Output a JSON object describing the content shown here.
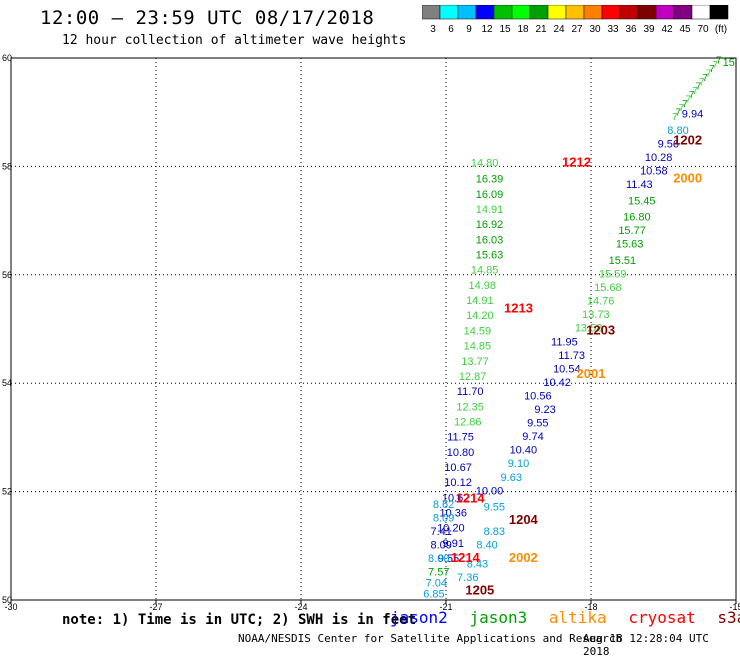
{
  "title": "12:00 — 23:59 UTC 08/17/2018",
  "subtitle": "12 hour collection of altimeter wave heights",
  "colorbar": {
    "colors": [
      "#808080",
      "#00ffff",
      "#00c0ff",
      "#0000ff",
      "#00c000",
      "#00ff00",
      "#00a000",
      "#ffff00",
      "#ffc000",
      "#ff8000",
      "#ff0000",
      "#c00000",
      "#800000",
      "#c000c0",
      "#800080",
      "#ffffff",
      "#000000"
    ],
    "labels": [
      "3",
      "6",
      "9",
      "12",
      "15",
      "18",
      "21",
      "24",
      "27",
      "30",
      "33",
      "36",
      "39",
      "42",
      "45",
      "70",
      "(ft)"
    ]
  },
  "note": "note: 1) Time is in UTC; 2) SWH is in feet",
  "legend": [
    {
      "name": "jason2",
      "color": "#0000ff"
    },
    {
      "name": "jason3",
      "color": "#00a000"
    },
    {
      "name": "altika",
      "color": "#ff8c00"
    },
    {
      "name": "cryosat",
      "color": "#ff0000"
    },
    {
      "name": "s3a",
      "color": "#800000"
    }
  ],
  "footer": {
    "center": "NOAA/NESDIS Center for Satellite Applications and Research",
    "stamp": "Aug 18 12:28:04 UTC 2018"
  },
  "chart_data": {
    "type": "scatter",
    "xlim": [
      -30,
      -15
    ],
    "ylim": [
      50,
      60
    ],
    "xticks": [
      -30,
      -27,
      -24,
      -21,
      -18,
      -15
    ],
    "yticks": [
      50,
      52,
      54,
      56,
      58,
      60
    ],
    "grid": true,
    "sat_colors": {
      "jason2": "#0000c0",
      "jason3_light": "#40d040",
      "jason3": "#00a000",
      "altika": "#ff8c00",
      "cryosat": "#ff0000",
      "s3a": "#800000",
      "cyan": "#00a0e0"
    },
    "time_labels": [
      {
        "text": "1212",
        "x": -18.3,
        "y": 58.0,
        "sat": "cryosat"
      },
      {
        "text": "1213",
        "x": -19.5,
        "y": 55.3,
        "sat": "cryosat"
      },
      {
        "text": "1214",
        "x": -20.5,
        "y": 51.8,
        "sat": "cryosat"
      },
      {
        "text": "1214",
        "x": -20.6,
        "y": 50.7,
        "sat": "cryosat"
      },
      {
        "text": "1205",
        "x": -20.3,
        "y": 50.1,
        "sat": "s3a"
      },
      {
        "text": "1204",
        "x": -19.4,
        "y": 51.4,
        "sat": "s3a"
      },
      {
        "text": "1203",
        "x": -17.8,
        "y": 54.9,
        "sat": "s3a"
      },
      {
        "text": "1202",
        "x": -16.0,
        "y": 58.4,
        "sat": "s3a"
      },
      {
        "text": "2000",
        "x": -16.0,
        "y": 57.7,
        "sat": "altika"
      },
      {
        "text": "2001",
        "x": -18.0,
        "y": 54.1,
        "sat": "altika"
      },
      {
        "text": "2002",
        "x": -19.4,
        "y": 50.7,
        "sat": "altika"
      }
    ],
    "points": [
      {
        "v": "14.80",
        "x": -20.2,
        "y": 58.0,
        "sat": "jason3_light"
      },
      {
        "v": "16.39",
        "x": -20.1,
        "y": 57.7,
        "sat": "jason3"
      },
      {
        "v": "16.09",
        "x": -20.1,
        "y": 57.42,
        "sat": "jason3"
      },
      {
        "v": "14.91",
        "x": -20.1,
        "y": 57.14,
        "sat": "jason3_light"
      },
      {
        "v": "16.92",
        "x": -20.1,
        "y": 56.86,
        "sat": "jason3"
      },
      {
        "v": "16.03",
        "x": -20.1,
        "y": 56.58,
        "sat": "jason3"
      },
      {
        "v": "15.63",
        "x": -20.1,
        "y": 56.3,
        "sat": "jason3"
      },
      {
        "v": "14.85",
        "x": -20.2,
        "y": 56.02,
        "sat": "jason3_light"
      },
      {
        "v": "14.98",
        "x": -20.25,
        "y": 55.74,
        "sat": "jason3_light"
      },
      {
        "v": "14.91",
        "x": -20.3,
        "y": 55.46,
        "sat": "jason3_light"
      },
      {
        "v": "14.20",
        "x": -20.3,
        "y": 55.18,
        "sat": "jason3_light"
      },
      {
        "v": "14.59",
        "x": -20.35,
        "y": 54.9,
        "sat": "jason3_light"
      },
      {
        "v": "14.85",
        "x": -20.35,
        "y": 54.62,
        "sat": "jason3_light"
      },
      {
        "v": "13.77",
        "x": -20.4,
        "y": 54.34,
        "sat": "jason3_light"
      },
      {
        "v": "12.87",
        "x": -20.45,
        "y": 54.06,
        "sat": "jason3_light"
      },
      {
        "v": "11.70",
        "x": -20.5,
        "y": 53.78,
        "sat": "jason2"
      },
      {
        "v": "12.35",
        "x": -20.5,
        "y": 53.5,
        "sat": "jason3_light"
      },
      {
        "v": "12.86",
        "x": -20.55,
        "y": 53.22,
        "sat": "jason3_light"
      },
      {
        "v": "11.75",
        "x": -20.7,
        "y": 52.94,
        "sat": "jason2"
      },
      {
        "v": "10.80",
        "x": -20.7,
        "y": 52.66,
        "sat": "jason2"
      },
      {
        "v": "10.67",
        "x": -20.75,
        "y": 52.38,
        "sat": "jason2"
      },
      {
        "v": "10.12",
        "x": -20.75,
        "y": 52.1,
        "sat": "jason2"
      },
      {
        "v": "10.62",
        "x": -20.8,
        "y": 51.82,
        "sat": "jason2"
      },
      {
        "v": "10.36",
        "x": -20.85,
        "y": 51.54,
        "sat": "jason2"
      },
      {
        "v": "10.20",
        "x": -20.9,
        "y": 51.26,
        "sat": "jason2"
      },
      {
        "v": "9.91",
        "x": -20.85,
        "y": 50.98,
        "sat": "jason2"
      },
      {
        "v": "9.55",
        "x": -20.95,
        "y": 50.7,
        "sat": "jason2"
      },
      {
        "v": "8.62",
        "x": -21.05,
        "y": 51.7,
        "sat": "cyan"
      },
      {
        "v": "8.09",
        "x": -21.05,
        "y": 51.45,
        "sat": "cyan"
      },
      {
        "v": "7.41",
        "x": -21.1,
        "y": 51.2,
        "sat": "jason2"
      },
      {
        "v": "8.09",
        "x": -21.1,
        "y": 50.95,
        "sat": "jason2"
      },
      {
        "v": "8.00",
        "x": -21.15,
        "y": 50.7,
        "sat": "cyan"
      },
      {
        "v": "7.57",
        "x": -21.15,
        "y": 50.45,
        "sat": "jason3"
      },
      {
        "v": "7.04",
        "x": -21.2,
        "y": 50.25,
        "sat": "cyan"
      },
      {
        "v": "6.85",
        "x": -21.25,
        "y": 50.05,
        "sat": "cyan"
      },
      {
        "v": "15",
        "x": -15.15,
        "y": 59.85,
        "sat": "jason3"
      },
      {
        "v": "9.94",
        "x": -15.9,
        "y": 58.9,
        "sat": "jason2"
      },
      {
        "v": "8.80",
        "x": -16.2,
        "y": 58.6,
        "sat": "cyan"
      },
      {
        "v": "9.56",
        "x": -16.4,
        "y": 58.35,
        "sat": "jason2"
      },
      {
        "v": "10.28",
        "x": -16.6,
        "y": 58.1,
        "sat": "jason2"
      },
      {
        "v": "10.58",
        "x": -16.7,
        "y": 57.85,
        "sat": "jason2"
      },
      {
        "v": "11.43",
        "x": -17.0,
        "y": 57.6,
        "sat": "jason2"
      },
      {
        "v": "15.45",
        "x": -16.95,
        "y": 57.3,
        "sat": "jason3"
      },
      {
        "v": "16.80",
        "x": -17.05,
        "y": 57.0,
        "sat": "jason3"
      },
      {
        "v": "15.77",
        "x": -17.15,
        "y": 56.75,
        "sat": "jason3"
      },
      {
        "v": "15.63",
        "x": -17.2,
        "y": 56.5,
        "sat": "jason3"
      },
      {
        "v": "15.51",
        "x": -17.35,
        "y": 56.2,
        "sat": "jason3"
      },
      {
        "v": "15.59",
        "x": -17.55,
        "y": 55.95,
        "sat": "jason3_light"
      },
      {
        "v": "15.68",
        "x": -17.65,
        "y": 55.7,
        "sat": "jason3_light"
      },
      {
        "v": "14.76",
        "x": -17.8,
        "y": 55.45,
        "sat": "jason3_light"
      },
      {
        "v": "13.73",
        "x": -17.9,
        "y": 55.2,
        "sat": "jason3_light"
      },
      {
        "v": "13.58",
        "x": -18.05,
        "y": 54.95,
        "sat": "jason3_light"
      },
      {
        "v": "11.95",
        "x": -18.55,
        "y": 54.7,
        "sat": "jason2"
      },
      {
        "v": "11.73",
        "x": -18.4,
        "y": 54.45,
        "sat": "jason2"
      },
      {
        "v": "10.54",
        "x": -18.5,
        "y": 54.2,
        "sat": "jason2"
      },
      {
        "v": "10.42",
        "x": -18.7,
        "y": 53.95,
        "sat": "jason2"
      },
      {
        "v": "10.56",
        "x": -19.1,
        "y": 53.7,
        "sat": "jason2"
      },
      {
        "v": "9.23",
        "x": -18.95,
        "y": 53.45,
        "sat": "jason2"
      },
      {
        "v": "9.55",
        "x": -19.1,
        "y": 53.2,
        "sat": "jason2"
      },
      {
        "v": "9.74",
        "x": -19.2,
        "y": 52.95,
        "sat": "jason2"
      },
      {
        "v": "10.40",
        "x": -19.4,
        "y": 52.7,
        "sat": "jason2"
      },
      {
        "v": "9.10",
        "x": -19.5,
        "y": 52.45,
        "sat": "cyan"
      },
      {
        "v": "9.63",
        "x": -19.65,
        "y": 52.2,
        "sat": "cyan"
      },
      {
        "v": "10.00",
        "x": -20.1,
        "y": 51.95,
        "sat": "jason2"
      },
      {
        "v": "9.55",
        "x": -20.0,
        "y": 51.65,
        "sat": "cyan"
      },
      {
        "v": "8.83",
        "x": -20.0,
        "y": 51.2,
        "sat": "cyan"
      },
      {
        "v": "8.40",
        "x": -20.15,
        "y": 50.95,
        "sat": "cyan"
      },
      {
        "v": "8.43",
        "x": -20.35,
        "y": 50.6,
        "sat": "cyan"
      },
      {
        "v": "7.36",
        "x": -20.55,
        "y": 50.35,
        "sat": "cyan"
      }
    ]
  }
}
